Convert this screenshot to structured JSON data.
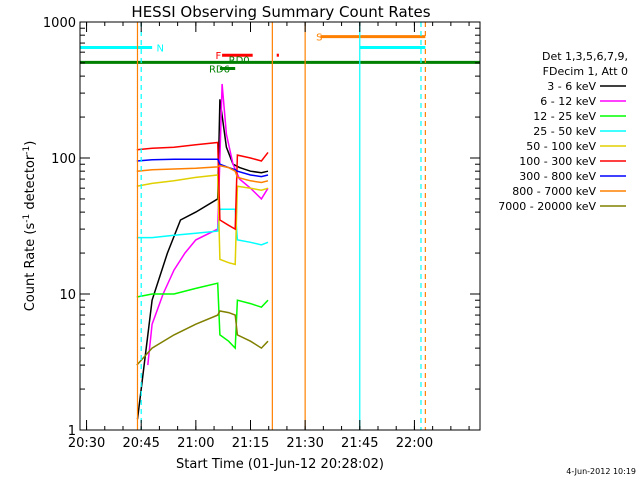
{
  "chart_data": {
    "type": "line",
    "title": "HESSI Observing Summary Count Rates",
    "xlabel": "Start Time (01-Jun-12 20:28:02)",
    "ylabel_main": "Count Rate (s",
    "ylabel_sup1": "-1",
    "ylabel_mid": " detector",
    "ylabel_sup2": "-1",
    "ylabel_end": ")",
    "y_scale": "log",
    "ylim": [
      1,
      1000
    ],
    "xlim_minutes": [
      20.47,
      22.3
    ],
    "x_ticks": [
      "20:30",
      "20:45",
      "21:00",
      "21:15",
      "21:30",
      "21:45",
      "22:00"
    ],
    "y_ticks": [
      "1",
      "10",
      "100",
      "1000"
    ],
    "legend_header": [
      "Det 1,3,5,6,7,9,",
      "FDecim 1, Att 0"
    ],
    "date_stamp": "4-Jun-2012 10:19",
    "series": [
      {
        "name": "3 - 6 keV",
        "color": "#000000",
        "points": [
          [
            20.733,
            1.2
          ],
          [
            20.75,
            2
          ],
          [
            20.8,
            9
          ],
          [
            20.87,
            20
          ],
          [
            20.93,
            35
          ],
          [
            21.0,
            40
          ],
          [
            21.1,
            50
          ],
          [
            21.11,
            270
          ],
          [
            21.14,
            120
          ],
          [
            21.17,
            90
          ],
          [
            21.2,
            85
          ],
          [
            21.25,
            80
          ],
          [
            21.3,
            78
          ],
          [
            21.33,
            80
          ]
        ]
      },
      {
        "name": "6 - 12 keV",
        "color": "#ff00ff",
        "points": [
          [
            20.78,
            3
          ],
          [
            20.8,
            6
          ],
          [
            20.85,
            10
          ],
          [
            20.9,
            15
          ],
          [
            20.95,
            20
          ],
          [
            21.0,
            25
          ],
          [
            21.1,
            30
          ],
          [
            21.11,
            100
          ],
          [
            21.12,
            350
          ],
          [
            21.14,
            150
          ],
          [
            21.17,
            90
          ],
          [
            21.2,
            70
          ],
          [
            21.25,
            60
          ],
          [
            21.3,
            50
          ],
          [
            21.33,
            60
          ]
        ]
      },
      {
        "name": "12 - 25 keV",
        "color": "#00ff00",
        "points": [
          [
            20.73,
            9.5
          ],
          [
            20.8,
            10
          ],
          [
            20.9,
            10
          ],
          [
            21.0,
            11
          ],
          [
            21.1,
            12
          ],
          [
            21.11,
            5
          ],
          [
            21.15,
            4.5
          ],
          [
            21.18,
            4
          ],
          [
            21.19,
            9
          ],
          [
            21.25,
            8.5
          ],
          [
            21.3,
            8
          ],
          [
            21.33,
            9
          ]
        ]
      },
      {
        "name": "25 - 50 keV",
        "color": "#00ffff",
        "points": [
          [
            20.73,
            26
          ],
          [
            20.8,
            26
          ],
          [
            20.9,
            27
          ],
          [
            21.0,
            28
          ],
          [
            21.1,
            29
          ],
          [
            21.11,
            42
          ],
          [
            21.15,
            42
          ],
          [
            21.18,
            42
          ],
          [
            21.19,
            25
          ],
          [
            21.25,
            24
          ],
          [
            21.3,
            23
          ],
          [
            21.33,
            24
          ]
        ]
      },
      {
        "name": "50 - 100 keV",
        "color": "#e0d000",
        "points": [
          [
            20.73,
            62
          ],
          [
            20.8,
            65
          ],
          [
            20.9,
            68
          ],
          [
            21.0,
            72
          ],
          [
            21.1,
            75
          ],
          [
            21.11,
            18
          ],
          [
            21.15,
            17
          ],
          [
            21.18,
            16.5
          ],
          [
            21.19,
            62
          ],
          [
            21.25,
            60
          ],
          [
            21.3,
            58
          ],
          [
            21.33,
            60
          ]
        ]
      },
      {
        "name": "100 - 300 keV",
        "color": "#ff0000",
        "points": [
          [
            20.73,
            115
          ],
          [
            20.8,
            118
          ],
          [
            20.9,
            120
          ],
          [
            21.0,
            125
          ],
          [
            21.1,
            130
          ],
          [
            21.11,
            35
          ],
          [
            21.15,
            32
          ],
          [
            21.18,
            30
          ],
          [
            21.19,
            105
          ],
          [
            21.25,
            100
          ],
          [
            21.3,
            95
          ],
          [
            21.33,
            110
          ]
        ]
      },
      {
        "name": "300 - 800 keV",
        "color": "#0000ff",
        "points": [
          [
            20.73,
            95
          ],
          [
            20.8,
            97
          ],
          [
            20.9,
            98
          ],
          [
            21.0,
            98
          ],
          [
            21.1,
            98
          ],
          [
            21.11,
            90
          ],
          [
            21.15,
            85
          ],
          [
            21.18,
            82
          ],
          [
            21.19,
            80
          ],
          [
            21.25,
            75
          ],
          [
            21.3,
            73
          ],
          [
            21.33,
            75
          ]
        ]
      },
      {
        "name": "800 - 7000 keV",
        "color": "#ff8000",
        "points": [
          [
            20.73,
            80
          ],
          [
            20.8,
            82
          ],
          [
            20.9,
            83
          ],
          [
            21.0,
            84
          ],
          [
            21.1,
            86
          ],
          [
            21.11,
            88
          ],
          [
            21.15,
            85
          ],
          [
            21.18,
            80
          ],
          [
            21.19,
            72
          ],
          [
            21.25,
            68
          ],
          [
            21.3,
            66
          ],
          [
            21.33,
            68
          ]
        ]
      },
      {
        "name": "7000 - 20000 keV",
        "color": "#808000",
        "points": [
          [
            20.73,
            3
          ],
          [
            20.8,
            4
          ],
          [
            20.9,
            5
          ],
          [
            21.0,
            6
          ],
          [
            21.1,
            7
          ],
          [
            21.11,
            7.5
          ],
          [
            21.15,
            7.3
          ],
          [
            21.18,
            7
          ],
          [
            21.19,
            5
          ],
          [
            21.25,
            4.5
          ],
          [
            21.3,
            4
          ],
          [
            21.33,
            4.5
          ]
        ]
      }
    ],
    "flags": [
      {
        "label": "N",
        "color": "#00ffff",
        "y": 650,
        "segments": [
          [
            20.47,
            20.8
          ],
          [
            21.75,
            22.05
          ]
        ],
        "label_x": 20.82
      },
      {
        "label": "F",
        "color": "#ff0000",
        "y": 570,
        "segments": [
          [
            21.12,
            21.26
          ],
          [
            21.37,
            21.38
          ]
        ],
        "label_x": 21.09
      },
      {
        "label": "RD0",
        "color": "#008000",
        "y": 530,
        "segments": [],
        "label_x": 21.15
      },
      {
        "label": "RD6",
        "color": "#008000",
        "y": 455,
        "segments": [
          [
            21.11,
            21.18
          ]
        ],
        "label_x": 21.06
      },
      {
        "label": "S",
        "color": "#ff8000",
        "y": 780,
        "segments": [
          [
            21.57,
            22.05
          ]
        ],
        "label_x": 21.55
      },
      {
        "label": "",
        "color": "#008000",
        "y": 505,
        "segments": [
          [
            20.47,
            22.3
          ]
        ],
        "label_x": 0
      }
    ],
    "vlines": [
      {
        "x": 20.75,
        "color": "#00ffff",
        "style": "dashed"
      },
      {
        "x": 20.733,
        "color": "#ff8000",
        "style": "solid"
      },
      {
        "x": 21.35,
        "color": "#ff8000",
        "style": "solid"
      },
      {
        "x": 21.5,
        "color": "#ff8000",
        "style": "solid"
      },
      {
        "x": 21.75,
        "color": "#00ffff",
        "style": "solid"
      },
      {
        "x": 22.03,
        "color": "#00ffff",
        "style": "dashed"
      },
      {
        "x": 22.05,
        "color": "#ff8000",
        "style": "dashed"
      }
    ]
  }
}
